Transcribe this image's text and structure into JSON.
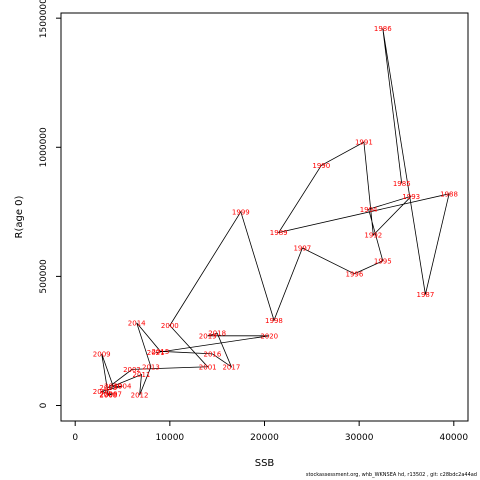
{
  "chart_data": {
    "type": "line",
    "xlabel": "SSB",
    "ylabel": "R(age 0)",
    "xlim": [
      -1500,
      41500
    ],
    "ylim": [
      -60000,
      1520000
    ],
    "xticks": [
      0,
      10000,
      20000,
      30000,
      40000
    ],
    "yticks": [
      0,
      500000,
      1000000,
      1500000
    ],
    "grid": false,
    "points": [
      {
        "label": "1985",
        "x": 34500,
        "y": 860000
      },
      {
        "label": "1986",
        "x": 32500,
        "y": 1460000
      },
      {
        "label": "1987",
        "x": 37000,
        "y": 430000
      },
      {
        "label": "1988",
        "x": 39500,
        "y": 820000
      },
      {
        "label": "1989",
        "x": 21500,
        "y": 670000
      },
      {
        "label": "1990",
        "x": 26000,
        "y": 930000
      },
      {
        "label": "1991",
        "x": 30500,
        "y": 1020000
      },
      {
        "label": "1992",
        "x": 31500,
        "y": 660000
      },
      {
        "label": "1993",
        "x": 35500,
        "y": 810000
      },
      {
        "label": "1994",
        "x": 31000,
        "y": 760000
      },
      {
        "label": "1995",
        "x": 32500,
        "y": 560000
      },
      {
        "label": "1996",
        "x": 29500,
        "y": 510000
      },
      {
        "label": "1997",
        "x": 24000,
        "y": 610000
      },
      {
        "label": "1998",
        "x": 21000,
        "y": 330000
      },
      {
        "label": "1999",
        "x": 17500,
        "y": 750000
      },
      {
        "label": "2000",
        "x": 10000,
        "y": 310000
      },
      {
        "label": "2001",
        "x": 14000,
        "y": 150000
      },
      {
        "label": "2002",
        "x": 6000,
        "y": 140000
      },
      {
        "label": "2003",
        "x": 3500,
        "y": 70000
      },
      {
        "label": "2004",
        "x": 5000,
        "y": 75000
      },
      {
        "label": "2005",
        "x": 2800,
        "y": 55000
      },
      {
        "label": "2006",
        "x": 3500,
        "y": 45000
      },
      {
        "label": "2007",
        "x": 4000,
        "y": 45000
      },
      {
        "label": "2008",
        "x": 3500,
        "y": 40000
      },
      {
        "label": "2009",
        "x": 2800,
        "y": 200000
      },
      {
        "label": "2010",
        "x": 4000,
        "y": 75000
      },
      {
        "label": "2011",
        "x": 7000,
        "y": 120000
      },
      {
        "label": "2012",
        "x": 6800,
        "y": 40000
      },
      {
        "label": "2013",
        "x": 8000,
        "y": 150000
      },
      {
        "label": "2014",
        "x": 6500,
        "y": 320000
      },
      {
        "label": "2015",
        "x": 9000,
        "y": 210000
      },
      {
        "label": "2016",
        "x": 14500,
        "y": 200000
      },
      {
        "label": "2017",
        "x": 16500,
        "y": 150000
      },
      {
        "label": "2018",
        "x": 15000,
        "y": 280000
      },
      {
        "label": "2019",
        "x": 14000,
        "y": 270000
      },
      {
        "label": "2020",
        "x": 20500,
        "y": 270000
      },
      {
        "label": "2021",
        "x": 8500,
        "y": 205000
      }
    ]
  },
  "footer_text": "stockassessment.org, whb_WKNSEA hd, r13502 , git: c28bdc2a44ad"
}
